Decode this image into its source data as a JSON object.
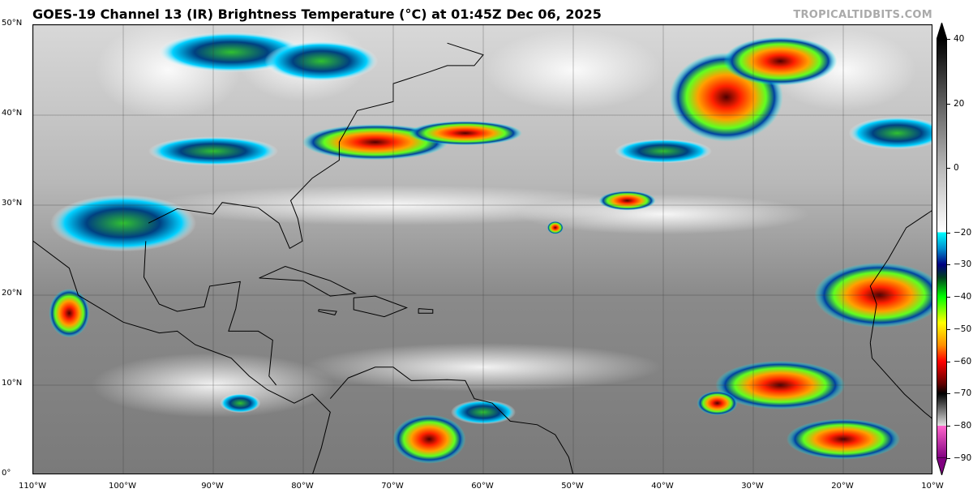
{
  "title": "GOES-19 Channel 13 (IR) Brightness Temperature (°C) at 01:45Z Dec 06, 2025",
  "credit": "TROPICALTIDBITS.COM",
  "map": {
    "lon_range": [
      -110,
      -10
    ],
    "lat_range": [
      0,
      50
    ],
    "lat_labels": [
      "0°",
      "10°N",
      "20°N",
      "30°N",
      "40°N",
      "50°N"
    ],
    "lon_labels": [
      "110°W",
      "100°W",
      "90°W",
      "80°W",
      "70°W",
      "60°W",
      "50°W",
      "40°W",
      "30°W",
      "20°W",
      "10°W"
    ]
  },
  "colorbar": {
    "range": [
      -90,
      40
    ],
    "ticks": [
      "40",
      "20",
      "0",
      "−20",
      "−30",
      "−40",
      "−50",
      "−60",
      "−70",
      "−80",
      "−90"
    ],
    "tick_values": [
      40,
      20,
      0,
      -20,
      -30,
      -40,
      -50,
      -60,
      -70,
      -80,
      -90
    ],
    "colors": {
      "warm": "#000000",
      "cold_cyan": "#00ffff",
      "navy": "#000080",
      "green": "#00ff00",
      "yellow": "#ffff00",
      "red": "#ff0000",
      "pink": "#ff66cc",
      "purple": "#800080"
    }
  }
}
